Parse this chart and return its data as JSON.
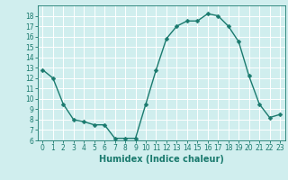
{
  "x": [
    0,
    1,
    2,
    3,
    4,
    5,
    6,
    7,
    8,
    9,
    10,
    11,
    12,
    13,
    14,
    15,
    16,
    17,
    18,
    19,
    20,
    21,
    22,
    23
  ],
  "y": [
    12.8,
    12.0,
    9.5,
    8.0,
    7.8,
    7.5,
    7.5,
    6.2,
    6.2,
    6.2,
    9.5,
    12.8,
    15.8,
    17.0,
    17.5,
    17.5,
    18.2,
    18.0,
    17.0,
    15.5,
    12.2,
    9.5,
    8.2,
    8.5
  ],
  "line_color": "#1a7a6e",
  "marker_color": "#1a7a6e",
  "bg_color": "#d0eeee",
  "grid_color": "#ffffff",
  "xlabel": "Humidex (Indice chaleur)",
  "ylim": [
    6,
    19
  ],
  "xlim": [
    -0.5,
    23.5
  ],
  "yticks": [
    6,
    7,
    8,
    9,
    10,
    11,
    12,
    13,
    14,
    15,
    16,
    17,
    18
  ],
  "xticks": [
    0,
    1,
    2,
    3,
    4,
    5,
    6,
    7,
    8,
    9,
    10,
    11,
    12,
    13,
    14,
    15,
    16,
    17,
    18,
    19,
    20,
    21,
    22,
    23
  ],
  "xlabel_fontsize": 7,
  "tick_fontsize": 5.5,
  "marker_size": 2.5,
  "line_width": 1.0
}
